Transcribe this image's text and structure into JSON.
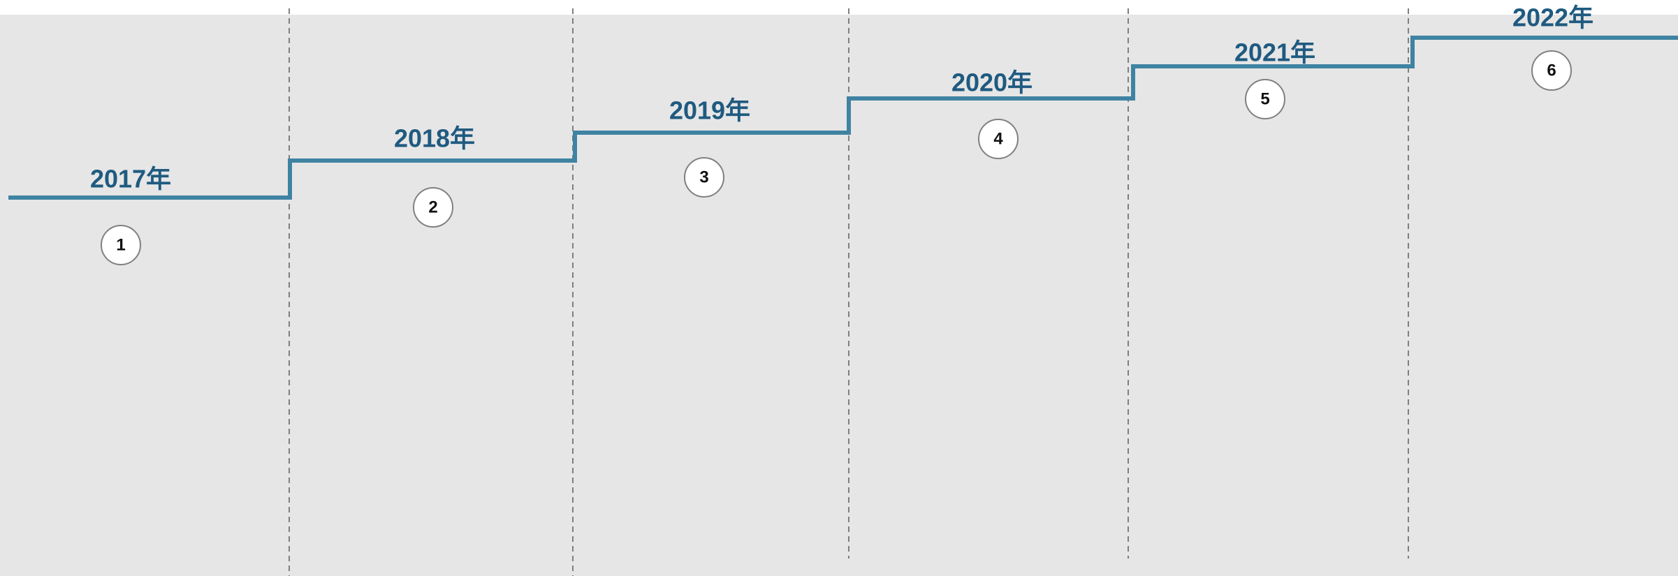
{
  "steps": [
    {
      "year": "2017年",
      "number": 1
    },
    {
      "year": "2018年",
      "number": 2
    },
    {
      "year": "2019年",
      "number": 3
    },
    {
      "year": "2020年",
      "number": 4
    },
    {
      "year": "2021年",
      "number": 5
    },
    {
      "year": "2022年",
      "number": 6
    }
  ]
}
